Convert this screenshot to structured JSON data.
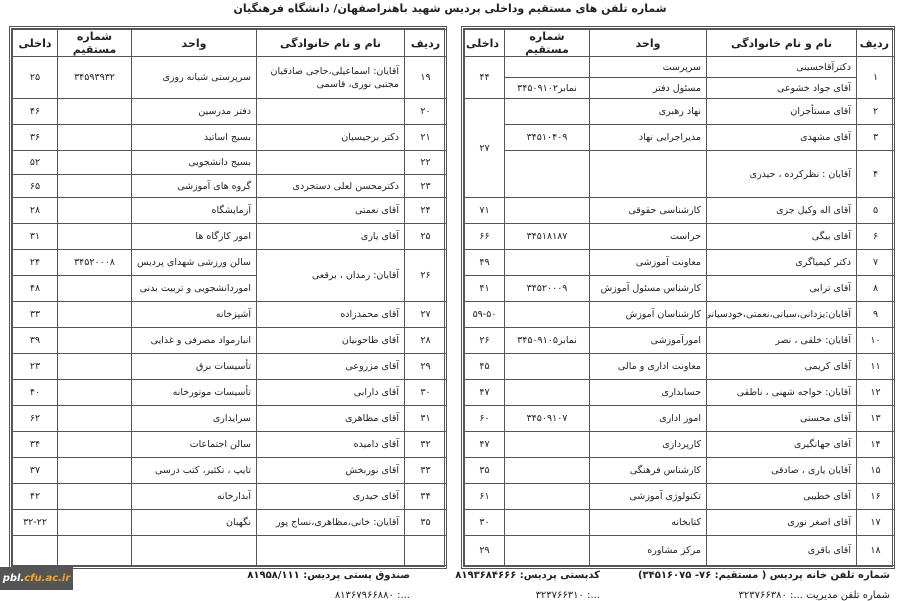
{
  "title": "شماره تلفن های مستقیم وداخلی پردیس شهید باهنراصفهان/ دانشگاه فرهنگیان",
  "headers": {
    "no": "ردیف",
    "name": "نام و نام خانوادگی",
    "unit": "واحد",
    "direct": "شماره مستقیم",
    "ext": "داخلی"
  },
  "right_table": {
    "rows": [
      [
        "۱",
        "دکترآقاحسینی",
        "سرپرست",
        "",
        "۴۴"
      ],
      [
        null,
        "آقای جواد خشوعی",
        "مسئول دفتر",
        "نمابر۳۴۵۰۹۱۰۲",
        null
      ],
      [
        "۲",
        "آقای مستأجران",
        "نهاد رهبری",
        "",
        "۲۷"
      ],
      [
        "۳",
        "آقای مشهدی",
        "مدیراجرایی نهاد",
        "۳۴۵۱۰۴۰۹",
        null
      ],
      [
        "۴",
        "آقایان : نظرکرده ، حیدری",
        "",
        "",
        null
      ],
      [
        "۵",
        "آقای اله وکیل جزی",
        "کارشناسی حقوقی",
        "",
        "۷۱"
      ],
      [
        "۶",
        "آقای بیگی",
        "حراست",
        "۳۴۵۱۸۱۸۷",
        "۶۶"
      ],
      [
        "۷",
        "دکتر کیمیاگری",
        "معاونت آموزشی",
        "",
        "۴۹"
      ],
      [
        "۸",
        "آقای ترابی",
        "کارشناس مسئول آموزش",
        "۳۴۵۲۰۰۰۹",
        "۴۱"
      ],
      [
        "۹",
        "آقایان:یزدانی،سیانی،نعمتی،خودسیانی",
        "کارشناسان آموزش",
        "",
        "۵۹-۵۰"
      ],
      [
        "۱۰",
        "آقایان: خلقی ، نصر",
        "امورآموزشی",
        "نمابر۳۴۵۰۹۱۰۵",
        "۲۶"
      ],
      [
        "۱۱",
        "آقای کریمی",
        "معاونت اداری و مالی",
        "",
        "۴۵"
      ],
      [
        "۱۲",
        "آقایان: خواجه شهنی ، ناطقی",
        "حسابداری",
        "",
        "۴۷"
      ],
      [
        "۱۳",
        "آقای محسنی",
        "امور اداری",
        "۳۴۵۰۹۱۰۷",
        "۶۰"
      ],
      [
        "۱۴",
        "آقای جهانگیری",
        "کارپردازی",
        "",
        "۴۷"
      ],
      [
        "۱۵",
        "آقایان یاری ، صادقی",
        "کارشناس فرهنگی",
        "",
        "۳۵"
      ],
      [
        "۱۶",
        "آقای خطیبی",
        "تکنولوژی آموزشی",
        "",
        "۶۱"
      ],
      [
        "۱۷",
        "آقای اصغر نوری",
        "کتابخانه",
        "",
        "۳۰"
      ],
      [
        "۱۸",
        "آقای باقری",
        "مرکز مشاوره",
        "",
        "۲۹"
      ]
    ]
  },
  "left_table": {
    "rows": [
      [
        "۱۹",
        "آقایان: اسماعیلی،حاجی صادقیان مجتبی نوری، قاسمی",
        "سرپرستی شبانه روزی",
        "۳۴۵۹۳۹۳۲",
        "۲۵"
      ],
      [
        "۲۰",
        "",
        "دفتر مدرسین",
        "",
        "۴۶"
      ],
      [
        "۲۱",
        "دکتر برجیسیان",
        "بسیج اساتید",
        "",
        "۳۶"
      ],
      [
        "۲۲",
        "",
        "بسیج دانشجویی",
        "",
        "۵۲"
      ],
      [
        "۲۳",
        "دکترمحسن لعلی دستجردی",
        "گروه های آموزشی",
        "",
        "۶۵"
      ],
      [
        "۲۴",
        "آقای نعمتی",
        "آزمایشگاه",
        "",
        "۲۸"
      ],
      [
        "۲۵",
        "آقای یاری",
        "امور کارگاه ها",
        "",
        "۳۱"
      ],
      [
        "۲۶",
        "آقایان: رمدان ، برقعی",
        "سالن ورزشی شهدای پردیس",
        "۳۴۵۲۰۰۰۸",
        "۲۴"
      ],
      [
        null,
        null,
        "اموردانشجویی و تربیت بدنی",
        "",
        "۴۸"
      ],
      [
        "۲۷",
        "آقای محمدزاده",
        "آشپزخانه",
        "",
        "۳۳"
      ],
      [
        "۲۸",
        "آقای طاحونیان",
        "انبارمواد مصرفی و غذایی",
        "",
        "۳۹"
      ],
      [
        "۲۹",
        "آقای مزروعی",
        "تأسیسات برق",
        "",
        "۲۳"
      ],
      [
        "۳۰",
        "آقای دارابی",
        "تأسیسات موتورخانه",
        "",
        "۴۰"
      ],
      [
        "۳۱",
        "آقای مظاهری",
        "سرایداری",
        "",
        "۶۲"
      ],
      [
        "۳۲",
        "آقای دامیده",
        "سالن اجتماعات",
        "",
        "۳۴"
      ],
      [
        "۳۳",
        "آقای نوربخش",
        "تایپ ، تکثیر، کتب درسی",
        "",
        "۳۷"
      ],
      [
        "۳۴",
        "آقای حیدری",
        "آبدارخانه",
        "",
        "۴۲"
      ],
      [
        "۳۵",
        "آقایان: خانی،مظاهری،نساج پور",
        "نگهبان",
        "",
        "۳۲-۲۲"
      ],
      [
        "",
        "",
        "",
        "",
        ""
      ]
    ]
  },
  "footer": {
    "home_phone": "شماره تلفن خانه پردیس ( مستقیم: ۷۶- ۳۴۵۱۶۰۷۵)",
    "postal_code": "کدپستی پردیس: ۸۱۹۳۶۸۴۶۶۶",
    "po_box": "صندوق پستی پردیس: ۸۱۹۵۸/۱۱۱",
    "line2_right": "شماره تلفن مدیریت ...: ۳۲۳۷۶۶۳۸۰",
    "line2_mid": "...: ۳۲۳۷۶۶۳۱۰",
    "line2_left": "...: ۸۱۳۶۷۹۶۶۸۸۰"
  },
  "logo": {
    "part1": "pbl.",
    "part2": "cfu.ac.ir"
  }
}
